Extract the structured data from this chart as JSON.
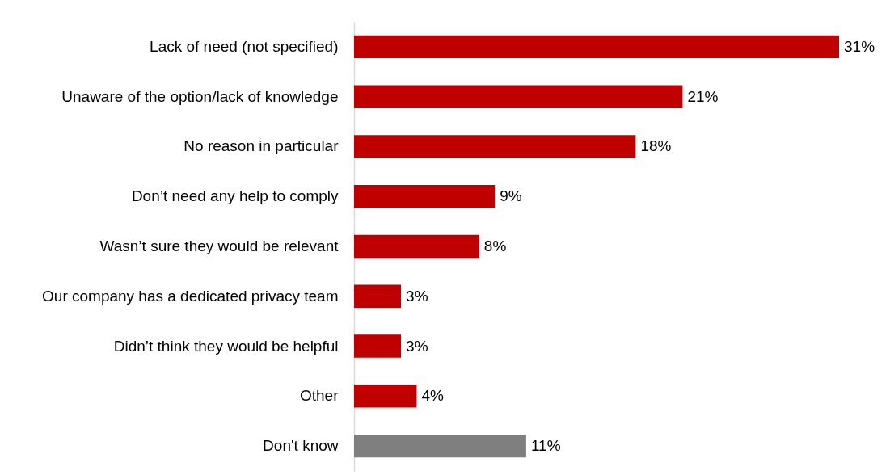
{
  "chart_data": {
    "type": "bar",
    "orientation": "horizontal",
    "categories": [
      "Lack of need (not specified)",
      "Unaware of the option/lack of knowledge",
      "No reason in particular",
      "Don’t need any help to comply",
      "Wasn’t sure they would be relevant",
      "Our company has a dedicated privacy team",
      "Didn’t think they would be helpful",
      "Other",
      "Don't know"
    ],
    "values": [
      31,
      21,
      18,
      9,
      8,
      3,
      3,
      4,
      11
    ],
    "value_labels": [
      "31%",
      "21%",
      "18%",
      "9%",
      "8%",
      "3%",
      "3%",
      "4%",
      "11%"
    ],
    "colors": [
      "#c00000",
      "#c00000",
      "#c00000",
      "#c00000",
      "#c00000",
      "#c00000",
      "#c00000",
      "#c00000",
      "#7f7f7f"
    ]
  }
}
